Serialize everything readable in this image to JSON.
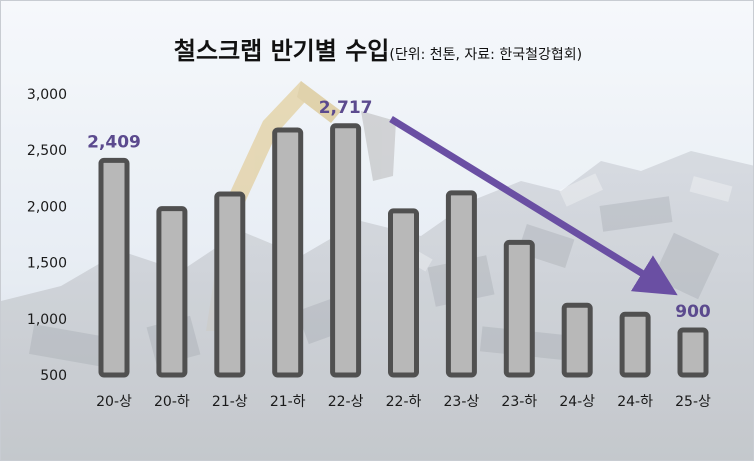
{
  "title": "철스크랩 반기별 수입",
  "subtitle": "(단위: 천톤, 자료: 한국철강협회)",
  "chart_data": {
    "type": "bar",
    "title": "철스크랩 반기별 수입",
    "subtitle": "(단위: 천톤, 자료: 한국철강협회)",
    "categories": [
      "20-상",
      "20-하",
      "21-상",
      "21-하",
      "22-상",
      "22-하",
      "23-상",
      "23-하",
      "24-상",
      "24-하",
      "25-상"
    ],
    "values": [
      2409,
      1980,
      2110,
      2680,
      2717,
      1960,
      2120,
      1680,
      1120,
      1040,
      900
    ],
    "data_labels": [
      {
        "category": "20-상",
        "text": "2,409"
      },
      {
        "category": "22-상",
        "text": "2,717"
      },
      {
        "category": "25-상",
        "text": "900"
      }
    ],
    "yticks": [
      "500",
      "1,000",
      "1,500",
      "2,000",
      "2,500",
      "3,000"
    ],
    "ylim": [
      500,
      3000
    ],
    "grid": false,
    "legend": "none",
    "annotation": "downward trend arrow from 22-상 to 25-상",
    "colors": {
      "bar_fill": "#b8b8b8",
      "bar_stroke": "#505050",
      "label": "#5b4a8e",
      "arrow": "#6a4fa3",
      "axis_text": "#1a1a1a"
    }
  }
}
